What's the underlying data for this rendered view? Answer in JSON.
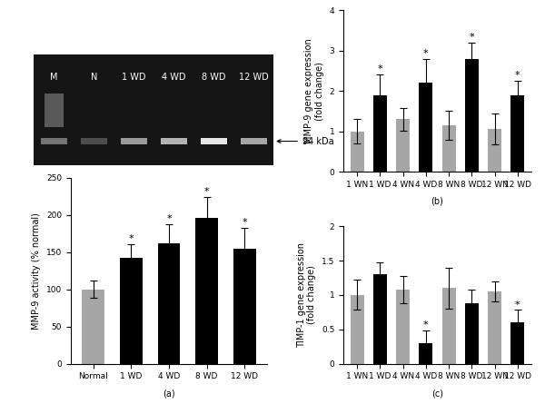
{
  "gel": {
    "lanes": [
      "M",
      "N",
      "1 WD",
      "4 WD",
      "8 WD",
      "12 WD"
    ],
    "band_intensity": [
      0.45,
      0.3,
      0.6,
      0.7,
      0.9,
      0.65
    ],
    "marker_label": "94 kDa"
  },
  "chart_data": [
    {
      "type": "bar",
      "panel": "(a)",
      "categories": [
        "Normal",
        "1 WD",
        "4 WD",
        "8 WD",
        "12 WD"
      ],
      "values": [
        100,
        142,
        162,
        196,
        155
      ],
      "errors": [
        12,
        18,
        25,
        28,
        28
      ],
      "annotations": [
        null,
        "*",
        "*",
        "*",
        "*"
      ],
      "colors": [
        "#a6a6a6",
        "#000000",
        "#000000",
        "#000000",
        "#000000"
      ],
      "y_label": "MMP-9 activity (% normal)",
      "ylim": [
        0,
        250
      ],
      "yticks": [
        0,
        50,
        100,
        150,
        200,
        250
      ],
      "grid": false
    },
    {
      "type": "bar",
      "panel": "(b)",
      "categories": [
        "1 WN",
        "1 WD",
        "4 WN",
        "4 WD",
        "8 WN",
        "8 WD",
        "12 WN",
        "12 WD"
      ],
      "values": [
        1.0,
        1.9,
        1.3,
        2.2,
        1.15,
        2.8,
        1.05,
        1.9
      ],
      "errors": [
        0.3,
        0.5,
        0.28,
        0.6,
        0.35,
        0.4,
        0.38,
        0.35
      ],
      "annotations": [
        null,
        "*",
        null,
        "*",
        null,
        "*",
        null,
        "*"
      ],
      "colors": [
        "#a6a6a6",
        "#000000",
        "#a6a6a6",
        "#000000",
        "#a6a6a6",
        "#000000",
        "#a6a6a6",
        "#000000"
      ],
      "y_label": "MMP-9 gene expression\n(fold change)",
      "ylim": [
        0,
        4
      ],
      "yticks": [
        0,
        1,
        2,
        3,
        4
      ],
      "grid": false
    },
    {
      "type": "bar",
      "panel": "(c)",
      "categories": [
        "1 WN",
        "1 WD",
        "4 WN",
        "4 WD",
        "8 WN",
        "8 WD",
        "12 WN",
        "12 WD"
      ],
      "values": [
        1.0,
        1.3,
        1.08,
        0.3,
        1.1,
        0.88,
        1.05,
        0.6
      ],
      "errors": [
        0.22,
        0.18,
        0.2,
        0.18,
        0.3,
        0.2,
        0.15,
        0.18
      ],
      "annotations": [
        null,
        null,
        null,
        "*",
        null,
        null,
        null,
        "*"
      ],
      "colors": [
        "#a6a6a6",
        "#000000",
        "#a6a6a6",
        "#000000",
        "#a6a6a6",
        "#000000",
        "#a6a6a6",
        "#000000"
      ],
      "y_label": "TIMP-1 gene expression\n(fold change)",
      "ylim": [
        0,
        2
      ],
      "yticks": [
        0,
        0.5,
        1,
        1.5,
        2
      ],
      "grid": false
    }
  ]
}
